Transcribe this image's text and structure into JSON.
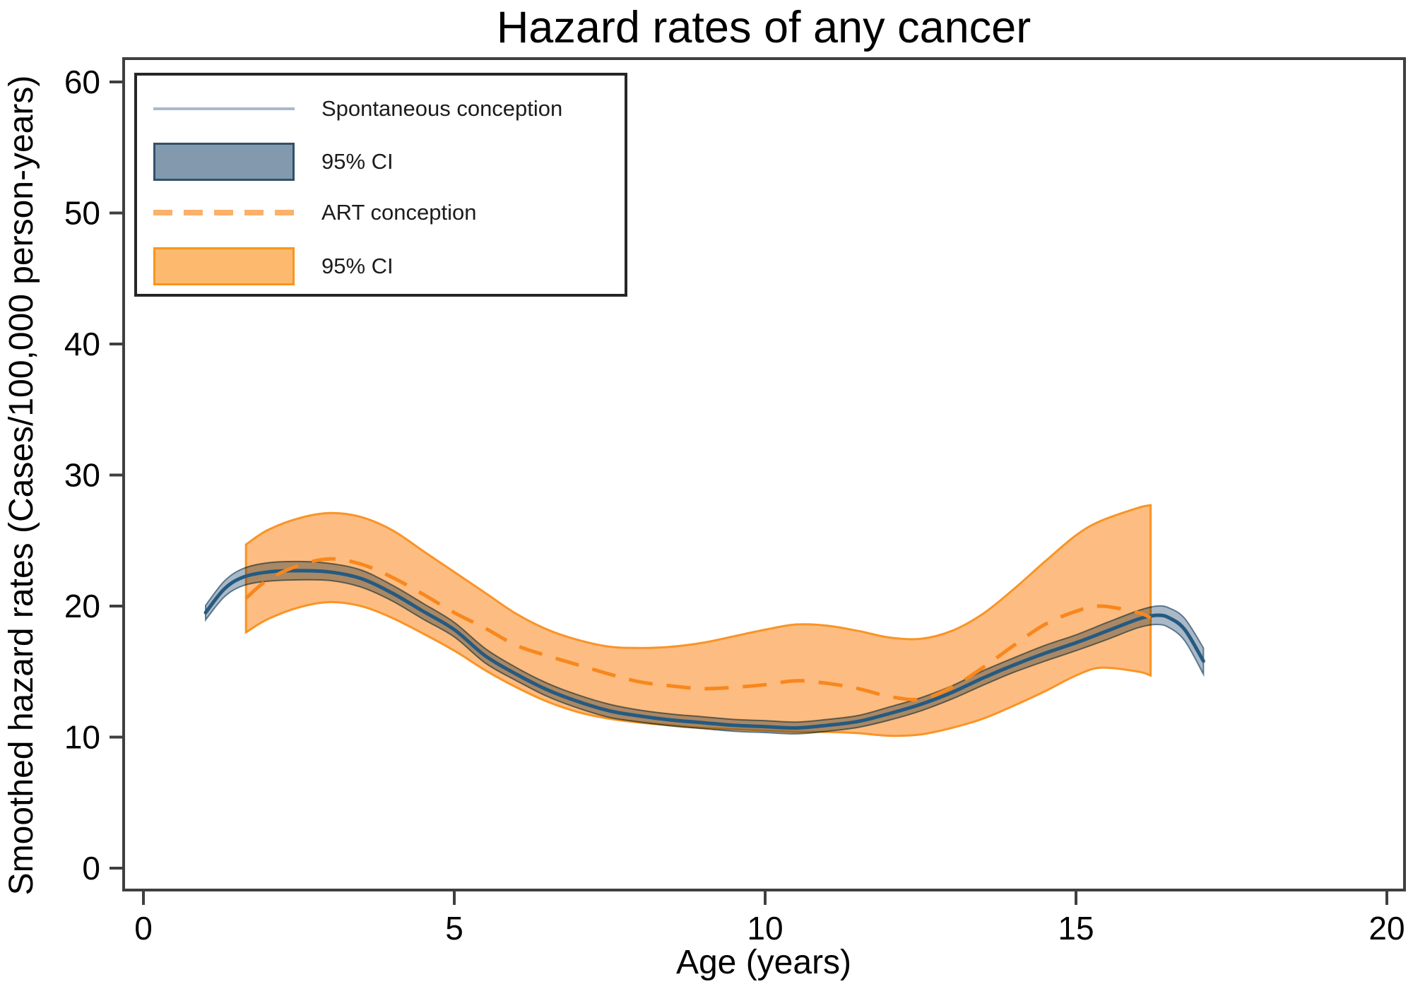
{
  "title": "Hazard rates of any cancer",
  "axes": {
    "x": {
      "label": "Age (years)",
      "ticks": [
        0,
        5,
        10,
        15,
        20
      ],
      "range": [
        0,
        20
      ]
    },
    "y": {
      "label": "Smoothed hazard rates (Cases/100,000 person-years)",
      "ticks": [
        0,
        10,
        20,
        30,
        40,
        50,
        60
      ],
      "range": [
        0,
        60
      ]
    }
  },
  "legend": {
    "items": [
      {
        "label": "Spontaneous conception",
        "swatch": "line-blue"
      },
      {
        "label": "95% CI",
        "swatch": "box-blue"
      },
      {
        "label": "ART conception",
        "swatch": "dash-orange"
      },
      {
        "label": "95% CI",
        "swatch": "box-orange"
      }
    ]
  },
  "colors": {
    "spontaneous_line": "#265a80",
    "spontaneous_ci_fill": "#647f99",
    "spontaneous_ci_edge": "#2b4d68",
    "art_line": "#f8871c",
    "art_ci_fill": "#fdbc81",
    "art_ci_edge": "#f99426",
    "legend_line": "#a6bace",
    "legend_dash": "#fbb06b",
    "axis": "#3f3f3f",
    "text": "#000000"
  },
  "chart_data": {
    "type": "line",
    "title": "Hazard rates of any cancer",
    "xlabel": "Age (years)",
    "ylabel": "Smoothed hazard rates (Cases/100,000 person-years)",
    "xlim": [
      0,
      20
    ],
    "ylim": [
      0,
      60
    ],
    "grid": false,
    "legend_position": "top-left",
    "series": [
      {
        "name": "Spontaneous conception",
        "style": "solid",
        "color": "#265a80",
        "ci_label": "95% CI",
        "x": [
          1.0,
          1.3,
          1.6,
          2.0,
          2.5,
          3.0,
          3.5,
          4.0,
          4.5,
          5.0,
          5.5,
          6.0,
          6.5,
          7.0,
          7.5,
          8.0,
          8.5,
          9.0,
          9.5,
          10.0,
          10.5,
          11.0,
          11.5,
          12.0,
          12.5,
          13.0,
          13.5,
          14.0,
          14.5,
          15.0,
          15.5,
          16.0,
          16.3,
          16.5,
          16.75,
          17.05
        ],
        "y": [
          19.5,
          21.3,
          22.2,
          22.6,
          22.7,
          22.6,
          22.1,
          21.0,
          19.6,
          18.2,
          16.2,
          14.8,
          13.6,
          12.7,
          12.0,
          11.6,
          11.3,
          11.1,
          10.9,
          10.8,
          10.7,
          10.9,
          11.2,
          11.8,
          12.5,
          13.4,
          14.5,
          15.5,
          16.4,
          17.2,
          18.1,
          19.0,
          19.3,
          19.1,
          18.2,
          15.8
        ],
        "ci_upper": [
          20.05,
          21.9,
          22.85,
          23.3,
          23.4,
          23.25,
          22.75,
          21.6,
          20.2,
          18.75,
          16.75,
          15.3,
          14.1,
          13.2,
          12.5,
          12.05,
          11.75,
          11.55,
          11.35,
          11.25,
          11.15,
          11.35,
          11.65,
          12.3,
          13.0,
          13.9,
          15.05,
          16.05,
          17.0,
          17.8,
          18.75,
          19.65,
          20.0,
          19.85,
          19.05,
          16.8
        ],
        "ci_lower": [
          18.95,
          20.7,
          21.55,
          21.9,
          22.0,
          21.95,
          21.45,
          20.4,
          19.0,
          17.65,
          15.65,
          14.3,
          13.1,
          12.2,
          11.5,
          11.15,
          10.85,
          10.65,
          10.45,
          10.35,
          10.25,
          10.45,
          10.75,
          11.3,
          12.0,
          12.9,
          13.95,
          14.95,
          15.8,
          16.6,
          17.45,
          18.35,
          18.6,
          18.35,
          17.35,
          14.8
        ]
      },
      {
        "name": "ART conception",
        "style": "dashed",
        "color": "#f8871c",
        "ci_label": "95% CI",
        "x": [
          1.65,
          2.0,
          2.5,
          3.0,
          3.5,
          4.0,
          4.5,
          5.0,
          5.5,
          6.0,
          6.5,
          7.0,
          7.5,
          8.0,
          8.5,
          9.0,
          9.5,
          10.0,
          10.5,
          11.0,
          11.5,
          12.0,
          12.5,
          13.0,
          13.5,
          14.0,
          14.5,
          15.0,
          15.4,
          16.0,
          16.2
        ],
        "y": [
          20.6,
          22.0,
          23.1,
          23.6,
          23.2,
          22.2,
          20.9,
          19.5,
          18.3,
          17.0,
          16.2,
          15.5,
          14.8,
          14.2,
          13.9,
          13.7,
          13.8,
          14.0,
          14.3,
          14.1,
          13.7,
          13.1,
          12.9,
          13.8,
          15.3,
          17.0,
          18.6,
          19.6,
          20.0,
          19.5,
          19.1
        ],
        "ci_upper": [
          24.7,
          25.8,
          26.7,
          27.1,
          26.8,
          25.8,
          24.2,
          22.6,
          21.0,
          19.4,
          18.2,
          17.4,
          16.9,
          16.8,
          16.9,
          17.2,
          17.7,
          18.2,
          18.6,
          18.5,
          18.1,
          17.6,
          17.5,
          18.1,
          19.4,
          21.3,
          23.4,
          25.4,
          26.5,
          27.5,
          27.7
        ],
        "ci_lower": [
          18.0,
          19.0,
          19.9,
          20.3,
          20.0,
          19.1,
          17.9,
          16.6,
          15.1,
          13.8,
          12.7,
          11.9,
          11.4,
          11.1,
          10.9,
          10.7,
          10.6,
          10.5,
          10.4,
          10.4,
          10.3,
          10.1,
          10.2,
          10.7,
          11.4,
          12.4,
          13.5,
          14.7,
          15.3,
          15.0,
          14.7
        ]
      }
    ]
  }
}
